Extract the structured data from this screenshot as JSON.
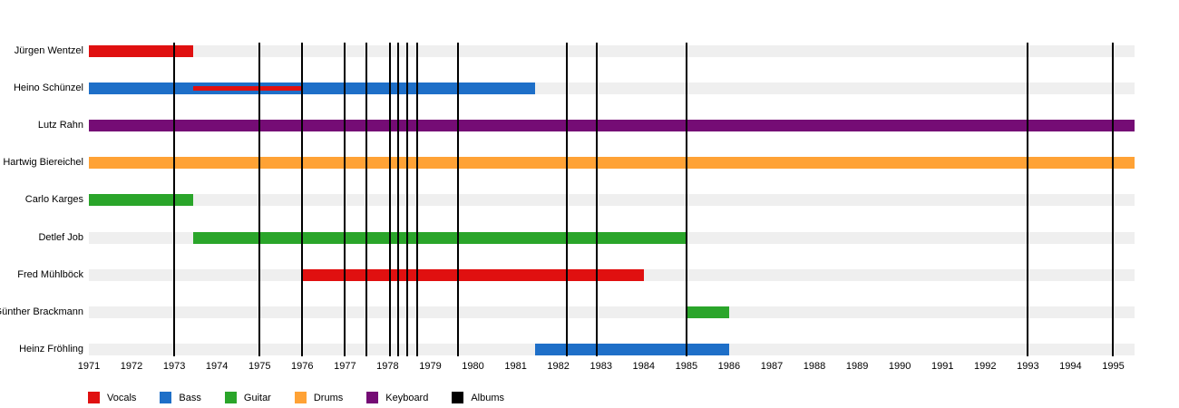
{
  "chart_data": {
    "type": "timeline",
    "title": "",
    "x_axis": {
      "start": 1971,
      "end": 1995.5,
      "tick_labels": [
        "1971",
        "1972",
        "1973",
        "1974",
        "1975",
        "1976",
        "1977",
        "1978",
        "1979",
        "1980",
        "1981",
        "1982",
        "1983",
        "1984",
        "1985",
        "1986",
        "1987",
        "1988",
        "1989",
        "1990",
        "1991",
        "1992",
        "1993",
        "1994",
        "1995"
      ]
    },
    "rows": [
      {
        "name": "Jürgen Wentzel",
        "bars": [
          {
            "role": "vocals",
            "start": 1971,
            "end": 1973.45
          }
        ]
      },
      {
        "name": "Heino Schünzel",
        "bars": [
          {
            "role": "bass",
            "start": 1971,
            "end": 1981.45
          },
          {
            "role": "vocals",
            "start": 1973.45,
            "end": 1976,
            "style": "thin"
          }
        ]
      },
      {
        "name": "Lutz Rahn",
        "bars": [
          {
            "role": "keyboard",
            "start": 1971,
            "end": 1995.5
          }
        ]
      },
      {
        "name": "Hartwig Biereichel",
        "bars": [
          {
            "role": "drums",
            "start": 1971,
            "end": 1995.5
          }
        ]
      },
      {
        "name": "Carlo Karges",
        "bars": [
          {
            "role": "guitar",
            "start": 1971,
            "end": 1973.45
          }
        ]
      },
      {
        "name": "Detlef Job",
        "bars": [
          {
            "role": "guitar",
            "start": 1973.45,
            "end": 1985
          }
        ]
      },
      {
        "name": "Fred Mühlböck",
        "bars": [
          {
            "role": "vocals",
            "start": 1976,
            "end": 1984
          }
        ]
      },
      {
        "name": "Günther Brackmann",
        "bars": [
          {
            "role": "guitar",
            "start": 1985,
            "end": 1986
          }
        ]
      },
      {
        "name": "Heinz Fröhling",
        "bars": [
          {
            "role": "bass",
            "start": 1981.45,
            "end": 1986
          }
        ]
      }
    ],
    "album_lines": [
      1973.0,
      1975.0,
      1976.0,
      1977.0,
      1977.5,
      1978.05,
      1978.25,
      1978.45,
      1978.7,
      1979.65,
      1982.2,
      1982.9,
      1985.0,
      1993.0,
      1995.0
    ],
    "legend": [
      {
        "role": "vocals",
        "label": "Vocals",
        "color": "#e01010"
      },
      {
        "role": "bass",
        "label": "Bass",
        "color": "#1e6fc8"
      },
      {
        "role": "guitar",
        "label": "Guitar",
        "color": "#2aa52a"
      },
      {
        "role": "drums",
        "label": "Drums",
        "color": "#ffa235"
      },
      {
        "role": "keyboard",
        "label": "Keyboard",
        "color": "#750c75"
      },
      {
        "role": "albums",
        "label": "Albums",
        "color": "#000000"
      }
    ]
  }
}
